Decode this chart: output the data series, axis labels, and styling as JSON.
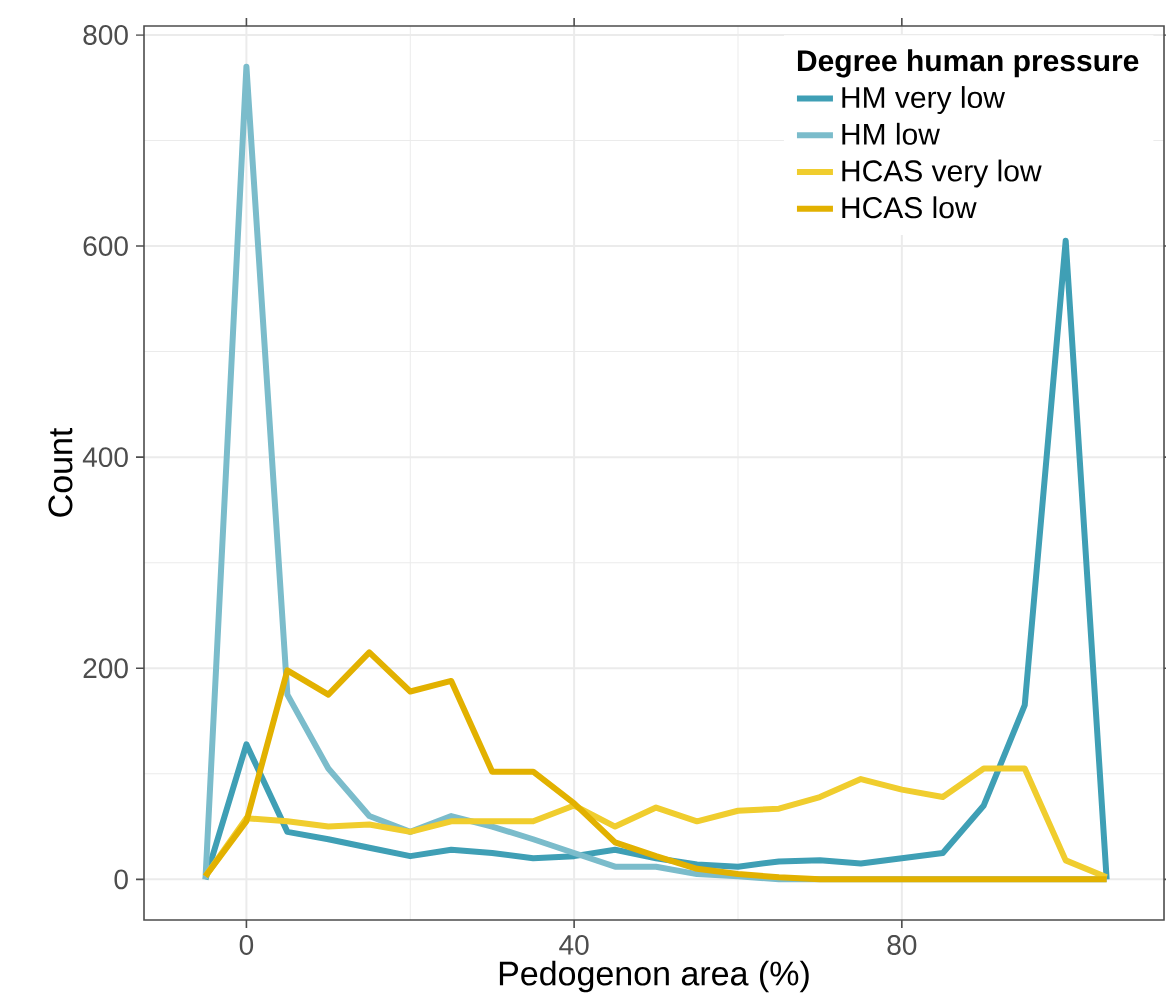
{
  "chart_data": {
    "type": "line",
    "xlabel": "Pedogenon area (%)",
    "ylabel": "Count",
    "legend_title": "Degree human pressure",
    "x": [
      -5,
      0,
      5,
      10,
      15,
      20,
      25,
      30,
      35,
      40,
      45,
      50,
      55,
      60,
      65,
      70,
      75,
      80,
      85,
      90,
      95,
      100,
      105
    ],
    "series": [
      {
        "name": "HM very low",
        "color": "#3f9fb5",
        "values": [
          0,
          128,
          45,
          38,
          30,
          22,
          28,
          25,
          20,
          22,
          28,
          20,
          14,
          12,
          17,
          18,
          15,
          20,
          25,
          70,
          165,
          605,
          0
        ]
      },
      {
        "name": "HM low",
        "color": "#7bbccb",
        "values": [
          0,
          770,
          175,
          105,
          60,
          45,
          60,
          50,
          38,
          25,
          12,
          12,
          5,
          3,
          0,
          0,
          0,
          0,
          0,
          0,
          0,
          0,
          0
        ]
      },
      {
        "name": "HCAS very low",
        "color": "#f0cd2e",
        "values": [
          3,
          58,
          55,
          50,
          52,
          45,
          55,
          55,
          55,
          70,
          50,
          68,
          55,
          65,
          67,
          78,
          95,
          85,
          78,
          105,
          105,
          18,
          2
        ]
      },
      {
        "name": "HCAS low",
        "color": "#e2b100",
        "values": [
          3,
          55,
          198,
          175,
          215,
          178,
          188,
          102,
          102,
          72,
          35,
          22,
          10,
          5,
          2,
          0,
          0,
          0,
          0,
          0,
          0,
          0,
          0
        ]
      }
    ],
    "xlim": [
      -12.5,
      112
    ],
    "ylim": [
      -38.5,
      808.5
    ],
    "xticks": [
      0,
      40,
      80
    ],
    "yticks": [
      0,
      200,
      400,
      600,
      800
    ],
    "grid": true,
    "legend": "top right",
    "marker": "none",
    "line_style": "solid"
  }
}
